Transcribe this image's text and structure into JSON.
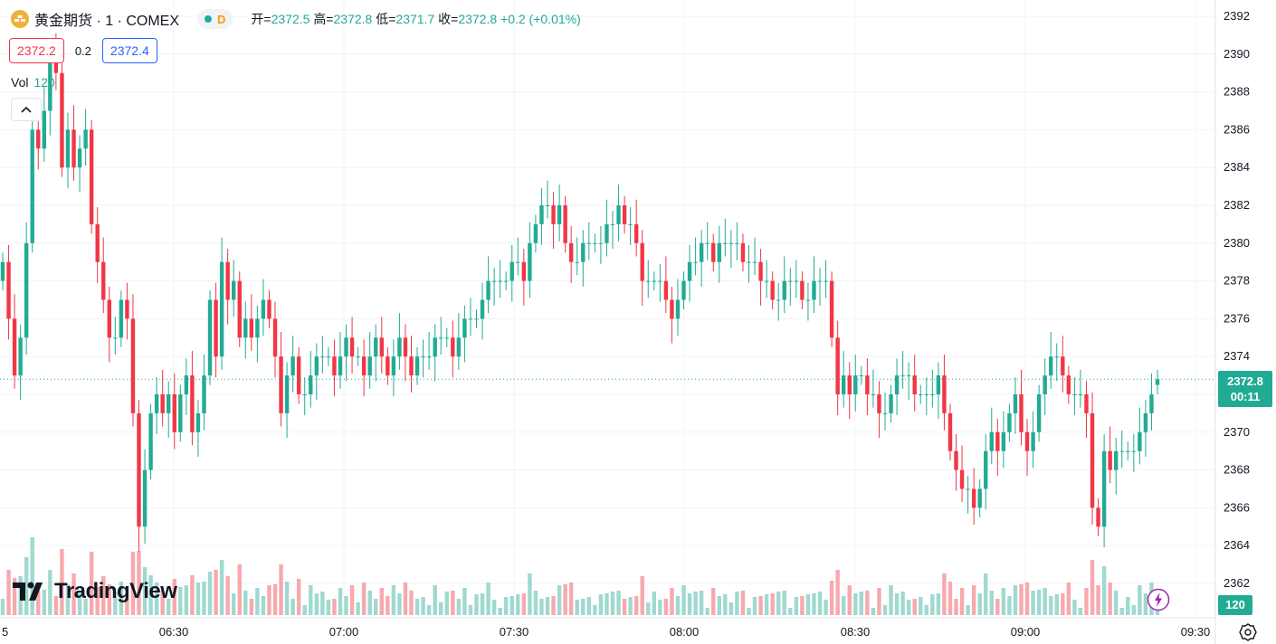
{
  "symbol": {
    "icon": "gold-bars-icon",
    "title": "黄金期货 · 1 · COMEX",
    "interval": "D"
  },
  "ohlc": {
    "open_label": "开=",
    "open": "2372.5",
    "high_label": "高=",
    "high": "2372.8",
    "low_label": "低=",
    "low": "2371.7",
    "close_label": "收=",
    "close": "2372.8",
    "change": "+0.2 (+0.01%)"
  },
  "quote": {
    "bid": "2372.2",
    "spread": "0.2",
    "ask": "2372.4"
  },
  "volume_legend": {
    "label": "Vol",
    "value": "120"
  },
  "logo_text": "TradingView",
  "current_price": {
    "price": "2372.8",
    "countdown": "00:11"
  },
  "volume_badge": "120",
  "colors": {
    "up": "#22ab94",
    "down": "#f23645",
    "up_vol": "#9fd9cf",
    "down_vol": "#f7a9ae",
    "grid": "#f0f3fa"
  },
  "chart_data": {
    "type": "candlestick",
    "price_axis": {
      "ticks": [
        2362,
        2364,
        2366,
        2368,
        2370,
        2372,
        2374,
        2376,
        2378,
        2380,
        2382,
        2384,
        2386,
        2388,
        2390,
        2392
      ],
      "range": [
        2360.9,
        2392.2
      ]
    },
    "time_axis": {
      "labels": [
        "5",
        "06:30",
        "07:00",
        "07:30",
        "08:00",
        "08:30",
        "09:00",
        "09:30"
      ]
    },
    "grid": true,
    "series": [
      {
        "name": "price",
        "close": [
          2379,
          2376,
          2373,
          2375,
          2380,
          2386,
          2385,
          2387,
          2390,
          2389,
          2384,
          2386,
          2384,
          2385,
          2386,
          2381,
          2379,
          2377,
          2375,
          2375,
          2377,
          2376,
          2371,
          2365,
          2368,
          2371,
          2372,
          2371,
          2372,
          2370,
          2372,
          2373,
          2370,
          2371,
          2373,
          2377,
          2374,
          2379,
          2377,
          2378,
          2375,
          2376,
          2375,
          2376,
          2377,
          2376,
          2374,
          2371,
          2373,
          2374,
          2372,
          2372,
          2373,
          2374,
          2374,
          2374,
          2373,
          2374,
          2375,
          2374,
          2374,
          2373,
          2374,
          2375,
          2374,
          2373,
          2374,
          2375,
          2374,
          2373,
          2374,
          2374,
          2374,
          2375,
          2375,
          2375,
          2374,
          2375,
          2376,
          2376,
          2376,
          2377,
          2378,
          2378,
          2378,
          2378,
          2379,
          2379,
          2378,
          2380,
          2381,
          2382,
          2382,
          2381,
          2382,
          2380,
          2379,
          2379,
          2380,
          2380,
          2380,
          2380,
          2381,
          2381,
          2382,
          2381,
          2381,
          2380,
          2378,
          2378,
          2378,
          2378,
          2377,
          2376,
          2377,
          2378,
          2379,
          2379,
          2380,
          2380,
          2379,
          2380,
          2380,
          2380,
          2380,
          2379,
          2379,
          2379,
          2378,
          2378,
          2377,
          2377,
          2378,
          2378,
          2378,
          2377,
          2377,
          2378,
          2378,
          2378,
          2375,
          2372,
          2373,
          2372,
          2373,
          2373,
          2372,
          2372,
          2371,
          2371,
          2372,
          2373,
          2373,
          2373,
          2372,
          2372,
          2372,
          2372,
          2373,
          2371,
          2369,
          2368,
          2367,
          2367,
          2366,
          2367,
          2369,
          2370,
          2369,
          2370,
          2371,
          2372,
          2370,
          2369,
          2370,
          2372,
          2373,
          2374,
          2374,
          2373,
          2372,
          2372,
          2372,
          2371,
          2366,
          2365,
          2369,
          2368,
          2369,
          2369,
          2369,
          2369,
          2370,
          2371,
          2372,
          2372.8
        ]
      },
      {
        "name": "volume",
        "ranges": [
          0,
          200
        ]
      }
    ]
  }
}
